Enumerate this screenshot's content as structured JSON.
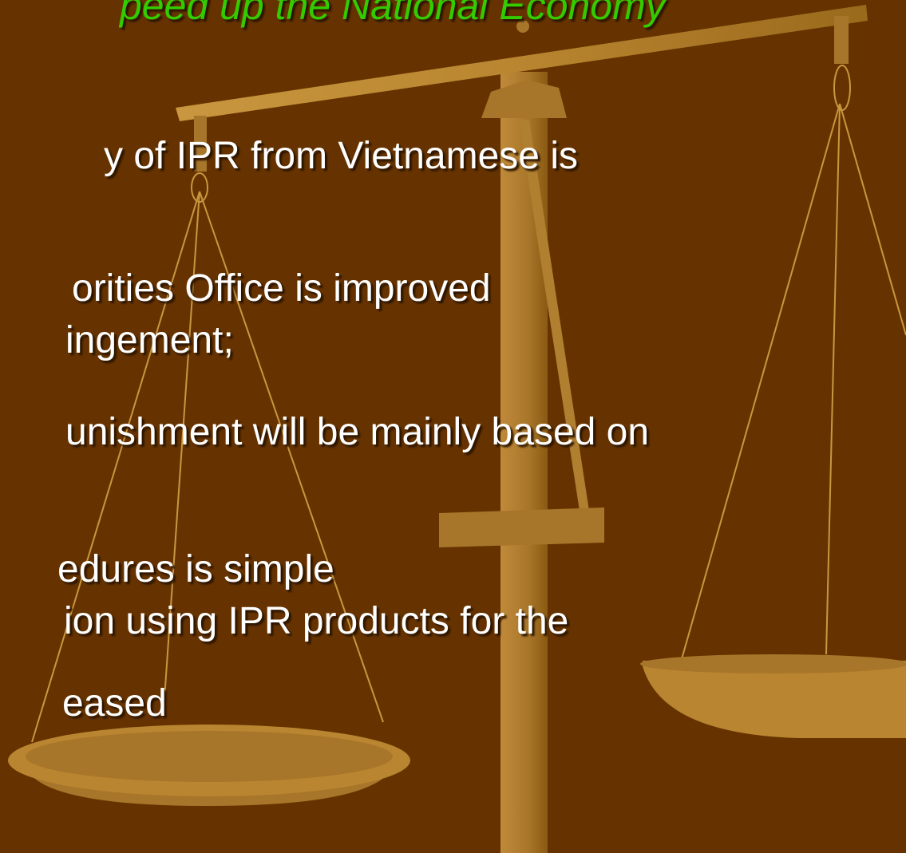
{
  "title": "peed up the National Economy",
  "bullets": [
    "y of IPR from Vietnamese is",
    "orities Office is improved",
    "ingement;",
    "unishment will be mainly based on",
    "edures is simple",
    "ion using IPR products for the",
    "eased"
  ]
}
